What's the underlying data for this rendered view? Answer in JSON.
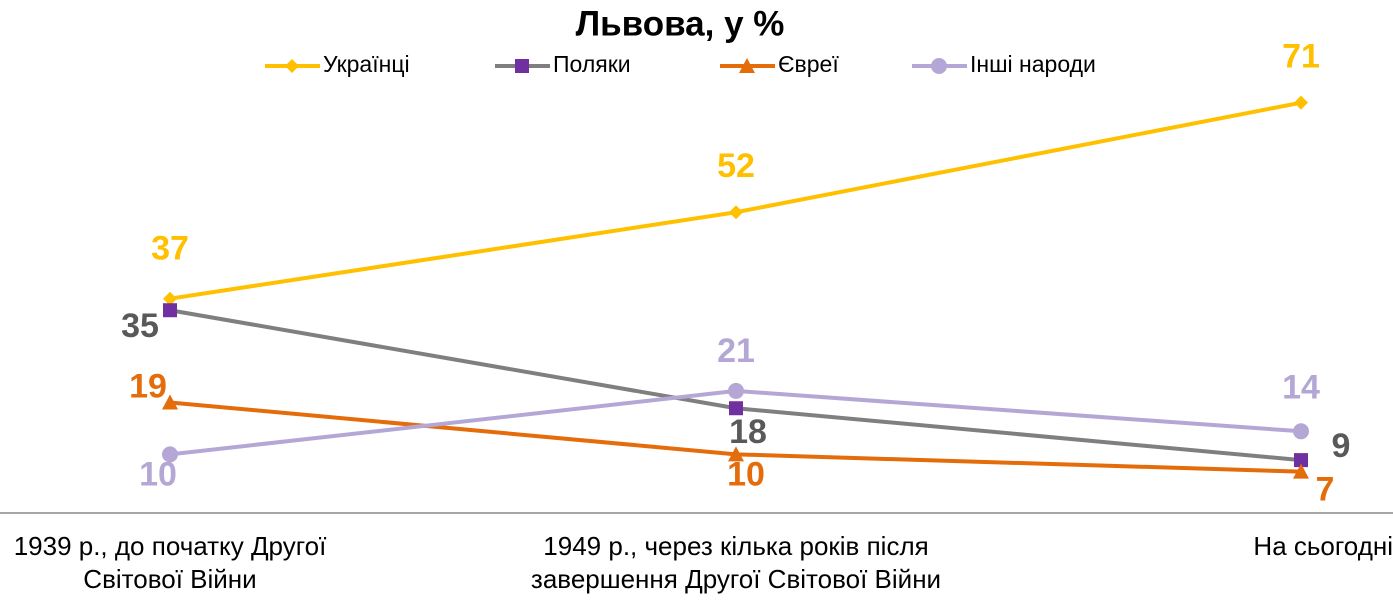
{
  "chart_data": {
    "type": "line",
    "title": "Львова,  у %",
    "categories": [
      "1939 р., до початку Другої Світової Війни",
      "1949 р., через кілька років після завершення Другої Світової Війни",
      "На сьогодні"
    ],
    "ylim": [
      0,
      75
    ],
    "series": [
      {
        "name": "Українці",
        "color": "#FFC000",
        "marker_color": "#FFC000",
        "marker": "diamond",
        "label_color": "#FFC000",
        "values": [
          37,
          52,
          71
        ]
      },
      {
        "name": "Поляки",
        "color": "#7F7F7F",
        "marker_color": "#7030A0",
        "marker": "square",
        "label_color": "#595959",
        "values": [
          35,
          18,
          9
        ]
      },
      {
        "name": "Євреї",
        "color": "#E46C0A",
        "marker_color": "#E46C0A",
        "marker": "triangle",
        "label_color": "#E46C0A",
        "values": [
          19,
          10,
          7
        ]
      },
      {
        "name": "Інші народи",
        "color": "#B4A7D6",
        "marker_color": "#B4A7D6",
        "marker": "circle",
        "label_color": "#B4A7D6",
        "values": [
          10,
          21,
          14
        ]
      }
    ]
  }
}
